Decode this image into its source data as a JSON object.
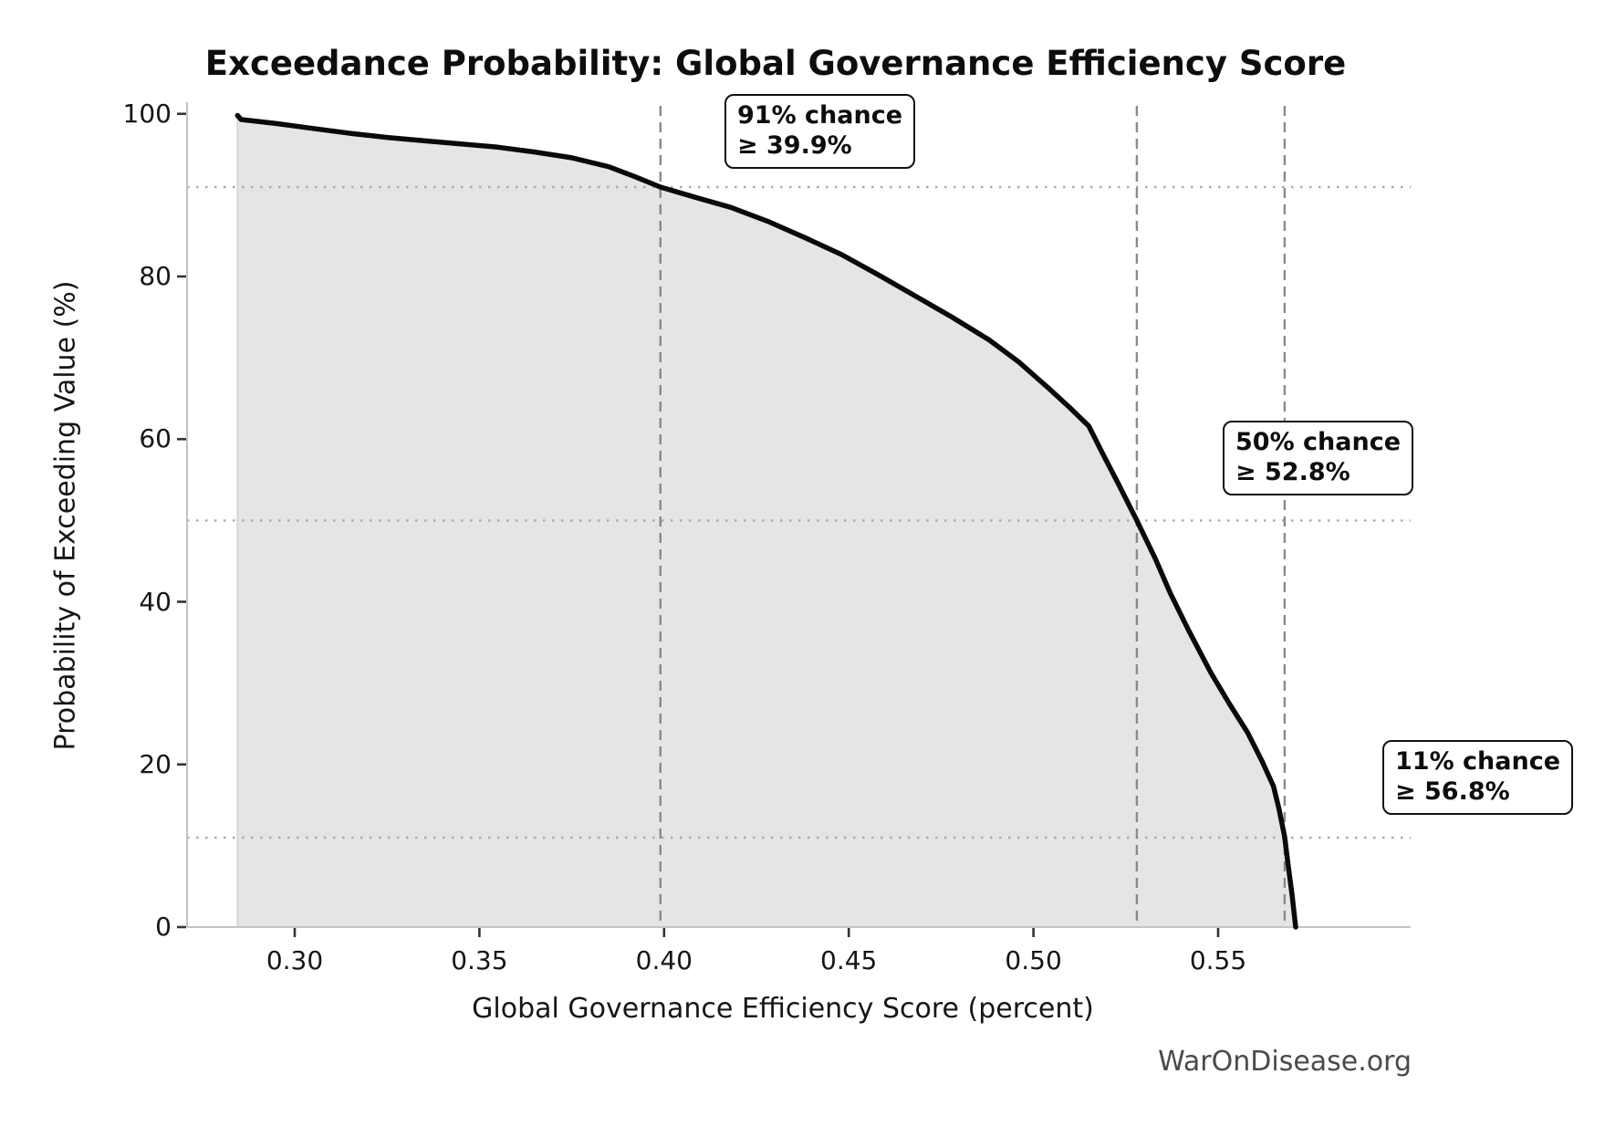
{
  "title": "Exceedance Probability: Global Governance Efficiency Score",
  "watermark": "WarOnDisease.org",
  "chart_data": {
    "type": "line",
    "title": "Exceedance Probability: Global Governance Efficiency Score",
    "xlabel": "Global Governance Efficiency Score (percent)",
    "ylabel": "Probability of Exceeding Value (%)",
    "x_tick_labels": [
      "0.30",
      "0.35",
      "0.40",
      "0.45",
      "0.50",
      "0.55"
    ],
    "x_tick_values": [
      0.3,
      0.35,
      0.4,
      0.45,
      0.5,
      0.55
    ],
    "y_tick_labels": [
      "0",
      "20",
      "40",
      "60",
      "80",
      "100"
    ],
    "y_tick_values": [
      0,
      20,
      40,
      60,
      80,
      100
    ],
    "xlim": [
      0.271,
      0.586
    ],
    "ylim": [
      0,
      100
    ],
    "grid": "dotted horizontal reference lines at annotated probabilities",
    "legend": "none",
    "series": [
      {
        "name": "exceedance-curve",
        "points": [
          [
            0.2845,
            99.8
          ],
          [
            0.2855,
            99.3
          ],
          [
            0.295,
            98.8
          ],
          [
            0.305,
            98.2
          ],
          [
            0.315,
            97.6
          ],
          [
            0.325,
            97.1
          ],
          [
            0.335,
            96.7
          ],
          [
            0.345,
            96.3
          ],
          [
            0.355,
            95.9
          ],
          [
            0.365,
            95.3
          ],
          [
            0.375,
            94.6
          ],
          [
            0.385,
            93.5
          ],
          [
            0.392,
            92.3
          ],
          [
            0.399,
            91.0
          ],
          [
            0.408,
            89.8
          ],
          [
            0.418,
            88.5
          ],
          [
            0.428,
            86.8
          ],
          [
            0.438,
            84.8
          ],
          [
            0.448,
            82.7
          ],
          [
            0.458,
            80.2
          ],
          [
            0.468,
            77.6
          ],
          [
            0.478,
            75.0
          ],
          [
            0.488,
            72.2
          ],
          [
            0.496,
            69.5
          ],
          [
            0.504,
            66.3
          ],
          [
            0.51,
            63.8
          ],
          [
            0.515,
            61.6
          ],
          [
            0.519,
            58.0
          ],
          [
            0.523,
            54.5
          ],
          [
            0.528,
            50.0
          ],
          [
            0.533,
            45.3
          ],
          [
            0.537,
            41.1
          ],
          [
            0.542,
            36.5
          ],
          [
            0.548,
            31.3
          ],
          [
            0.553,
            27.5
          ],
          [
            0.558,
            23.9
          ],
          [
            0.562,
            20.3
          ],
          [
            0.565,
            17.3
          ],
          [
            0.5665,
            14.5
          ],
          [
            0.568,
            11.1
          ],
          [
            0.569,
            7.5
          ],
          [
            0.57,
            4.0
          ],
          [
            0.571,
            0.0
          ]
        ]
      }
    ],
    "reference_lines": {
      "vertical_dashed_x": [
        0.399,
        0.528,
        0.568
      ],
      "horizontal_dotted_y": [
        91,
        50,
        11
      ]
    },
    "annotations": [
      {
        "line1": "91% chance",
        "line2": "≥ 39.9%",
        "chance_percent": 91,
        "threshold_percent": 39.9
      },
      {
        "line1": "50% chance",
        "line2": "≥ 52.8%",
        "chance_percent": 50,
        "threshold_percent": 52.8
      },
      {
        "line1": "11% chance",
        "line2": "≥ 56.8%",
        "chance_percent": 11,
        "threshold_percent": 56.8
      }
    ],
    "colors": {
      "curve": "#0a0a0a",
      "fill": "#e5e5e5",
      "dashed_line": "#8a8a8a",
      "dotted_line": "#ababab",
      "spine": "#c4c4c4",
      "tick": "#333333",
      "watermark": "#4a4a4a"
    }
  }
}
